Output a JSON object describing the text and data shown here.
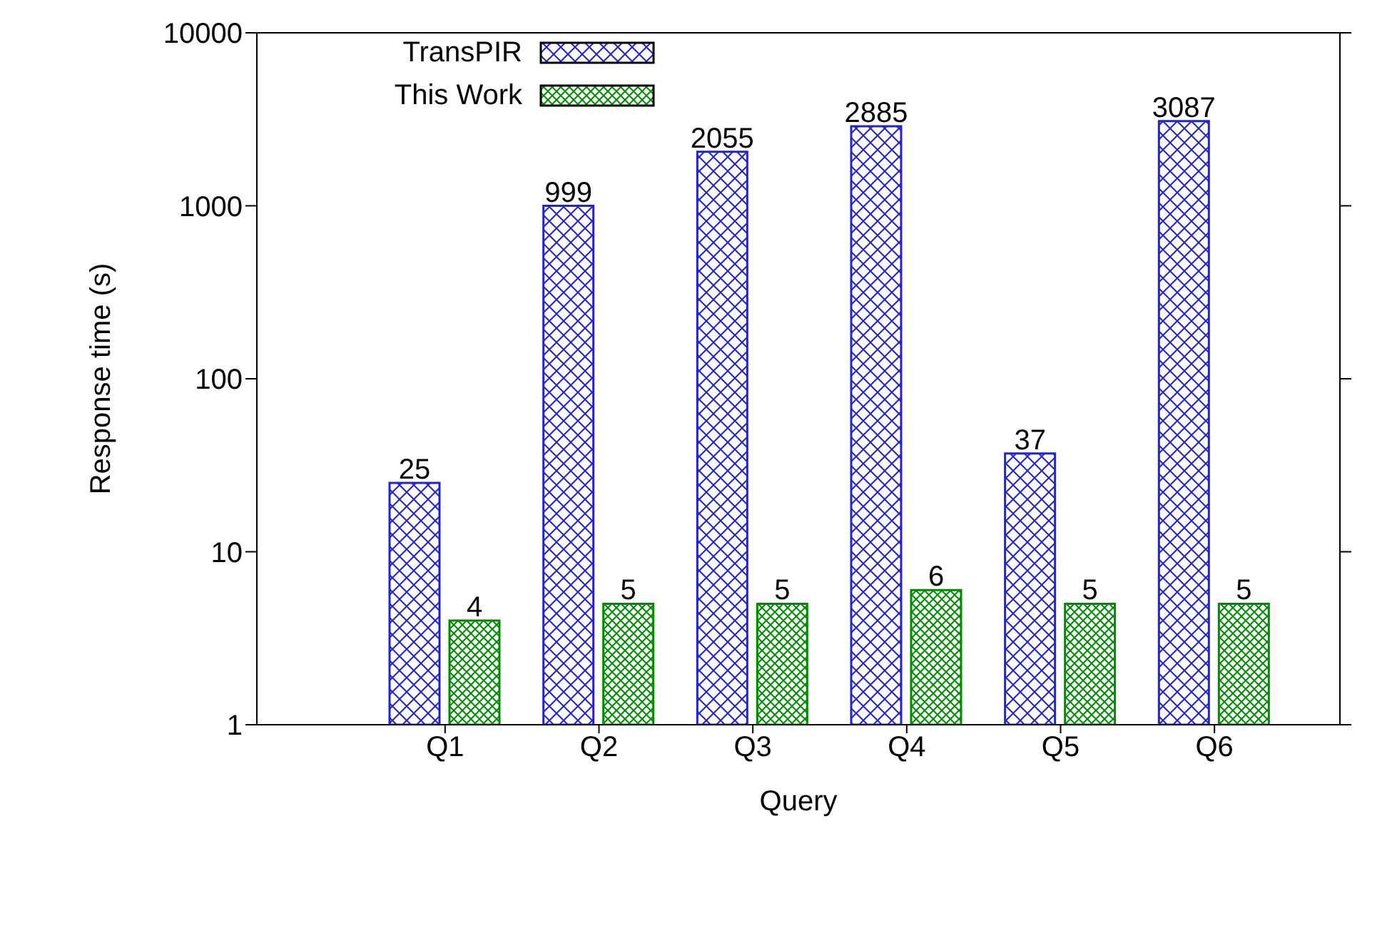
{
  "chart_data": {
    "type": "bar",
    "xlabel": "Query",
    "ylabel": "Response time (s)",
    "categories": [
      "Q1",
      "Q2",
      "Q3",
      "Q4",
      "Q5",
      "Q6"
    ],
    "series": [
      {
        "name": "TransPIR",
        "color": "#2424c8",
        "values": [
          25,
          999,
          2055,
          2885,
          37,
          3087
        ]
      },
      {
        "name": "This Work",
        "color": "#008a00",
        "values": [
          4,
          5,
          5,
          6,
          5,
          5
        ]
      }
    ],
    "log": true,
    "ylim": [
      1,
      10000
    ],
    "yticks": [
      1,
      10,
      100,
      1000,
      10000
    ],
    "data_labels": true,
    "legend": "top left"
  }
}
